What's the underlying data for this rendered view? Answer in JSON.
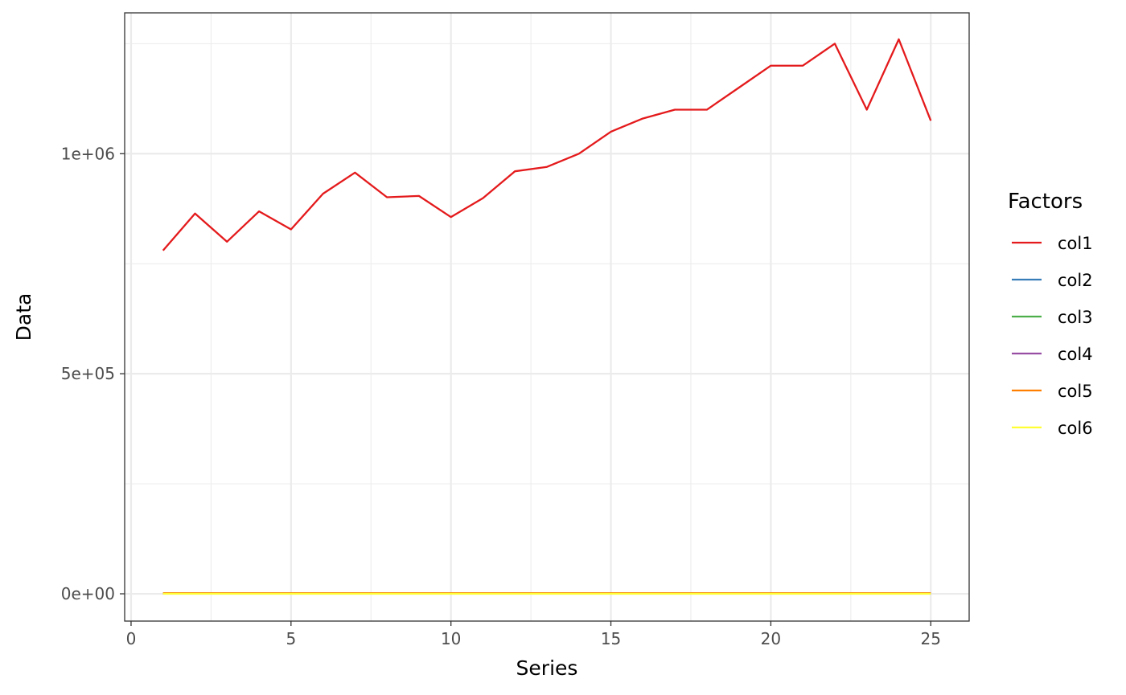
{
  "chart_data": {
    "type": "line",
    "title": "",
    "xlabel": "Series",
    "ylabel": "Data",
    "xlim": [
      -0.2,
      26.2
    ],
    "ylim": [
      -62000,
      1320000
    ],
    "x_ticks": [
      0,
      5,
      10,
      15,
      20,
      25
    ],
    "x_tick_labels": [
      "0",
      "5",
      "10",
      "15",
      "20",
      "25"
    ],
    "y_ticks": [
      0,
      500000,
      1000000
    ],
    "y_tick_labels": [
      "0e+00",
      "5e+05",
      "1e+06"
    ],
    "grid": true,
    "legend": {
      "title": "Factors",
      "position": "right"
    },
    "x": [
      1,
      2,
      3,
      4,
      5,
      6,
      7,
      8,
      9,
      10,
      11,
      12,
      13,
      14,
      15,
      16,
      17,
      18,
      19,
      20,
      21,
      22,
      23,
      24,
      25
    ],
    "series": [
      {
        "name": "col1",
        "color": "#e41a1c",
        "values": [
          780000,
          864000,
          800000,
          869000,
          828000,
          909000,
          957000,
          901000,
          904000,
          856000,
          899000,
          960000,
          970000,
          1000000,
          1050000,
          1080000,
          1100000,
          1100000,
          1150000,
          1200000,
          1200000,
          1250000,
          1100000,
          1260000,
          1075000
        ]
      },
      {
        "name": "col2",
        "color": "#377eb8",
        "values": [
          1000,
          1000,
          1000,
          1000,
          1000,
          1000,
          1000,
          1000,
          1000,
          1000,
          1000,
          1000,
          1000,
          1000,
          1000,
          1000,
          1000,
          1000,
          1000,
          1000,
          1000,
          1000,
          1000,
          1000,
          1000
        ]
      },
      {
        "name": "col3",
        "color": "#4daf4a",
        "values": [
          600,
          600,
          600,
          600,
          600,
          600,
          600,
          600,
          600,
          600,
          600,
          600,
          600,
          600,
          600,
          600,
          600,
          600,
          600,
          600,
          600,
          600,
          600,
          600,
          600
        ]
      },
      {
        "name": "col4",
        "color": "#984ea3",
        "values": [
          300,
          300,
          300,
          300,
          300,
          300,
          300,
          300,
          300,
          300,
          300,
          300,
          300,
          300,
          300,
          300,
          300,
          300,
          300,
          300,
          300,
          300,
          300,
          300,
          300
        ]
      },
      {
        "name": "col5",
        "color": "#ff7f00",
        "values": [
          1500,
          1500,
          1500,
          1500,
          1500,
          1500,
          1500,
          1500,
          1500,
          1500,
          1500,
          1500,
          1500,
          1500,
          1500,
          1500,
          1500,
          1500,
          1500,
          1500,
          1500,
          1500,
          1500,
          1500,
          1500
        ]
      },
      {
        "name": "col6",
        "color": "#ffff33",
        "values": [
          100,
          100,
          100,
          100,
          100,
          100,
          100,
          100,
          100,
          100,
          100,
          100,
          100,
          100,
          100,
          100,
          100,
          100,
          100,
          100,
          100,
          100,
          100,
          100,
          100
        ]
      }
    ]
  }
}
